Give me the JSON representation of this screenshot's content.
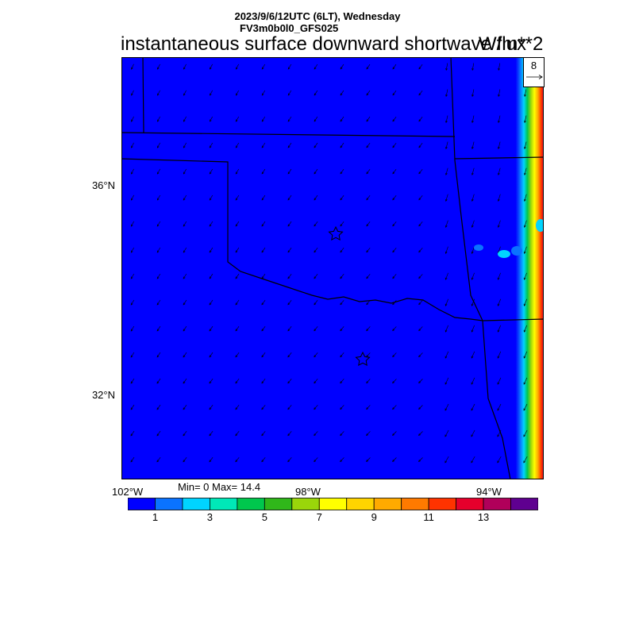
{
  "header": {
    "date_line": "2023/9/6/12UTC (6LT), Wednesday",
    "model_line": "FV3m0b0l0_GFS025",
    "title": "instantaneous surface downward shortwave flux",
    "units": "W/m**2"
  },
  "reference_vector": {
    "value": "8",
    "icon": "arrow-right-icon"
  },
  "axes": {
    "lat_labels": [
      "36°N",
      "32°N"
    ],
    "lon_labels": [
      "102°W",
      "98°W",
      "94°W"
    ]
  },
  "stats": {
    "min_max": "Min= 0 Max= 14.4"
  },
  "colorbar": {
    "colors": [
      "#0000ff",
      "#0a73ff",
      "#00d4ff",
      "#00e8b8",
      "#00c74d",
      "#30b71a",
      "#9ad60a",
      "#ffff00",
      "#ffd400",
      "#ffaa00",
      "#ff7a00",
      "#ff3300",
      "#e6002c",
      "#b0005a",
      "#5f0090"
    ],
    "labels": [
      "1",
      "3",
      "5",
      "7",
      "9",
      "11",
      "13"
    ]
  },
  "map_colors": {
    "background_field": "#0000ff",
    "boundary": "#000000",
    "vector": "#000000"
  },
  "map_features": {
    "city_markers": 2,
    "marker_icon": "star-icon"
  }
}
